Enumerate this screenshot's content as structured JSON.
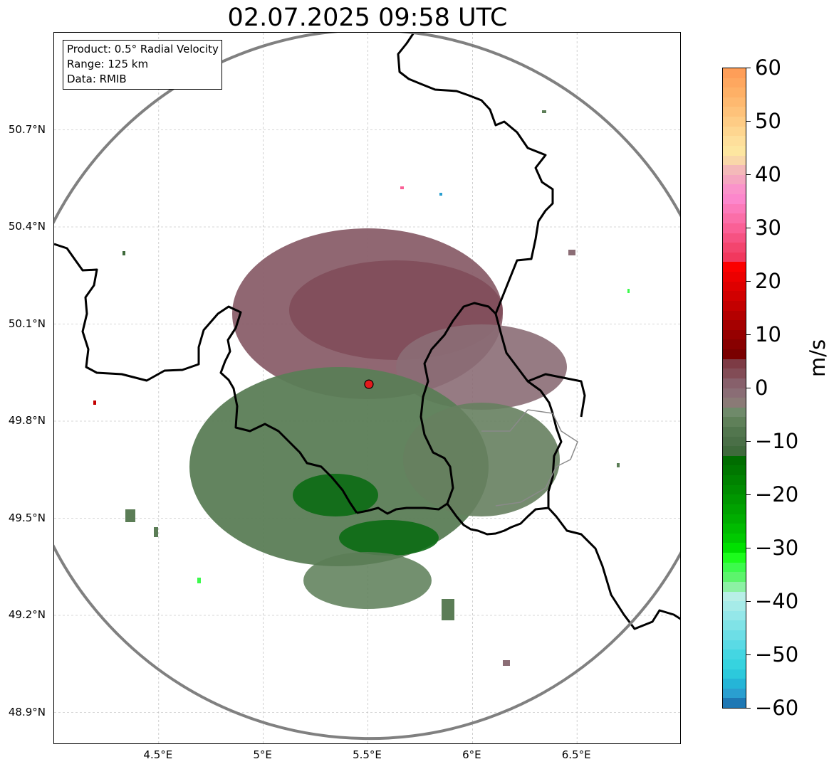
{
  "title": "02.07.2025 09:58 UTC",
  "info_box": {
    "product": "Product: 0.5° Radial Velocity",
    "range": "Range: 125 km",
    "data": "Data: RMIB"
  },
  "map": {
    "lon_range": [
      4.0,
      7.0
    ],
    "lat_range": [
      48.8,
      51.0
    ],
    "lat_ticks": [
      {
        "value": 50.7,
        "label": "50.7°N"
      },
      {
        "value": 50.4,
        "label": "50.4°N"
      },
      {
        "value": 50.1,
        "label": "50.1°N"
      },
      {
        "value": 49.8,
        "label": "49.8°N"
      },
      {
        "value": 49.5,
        "label": "49.5°N"
      },
      {
        "value": 49.2,
        "label": "49.2°N"
      },
      {
        "value": 48.9,
        "label": "48.9°N"
      }
    ],
    "lon_ticks": [
      {
        "value": 4.5,
        "label": "4.5°E"
      },
      {
        "value": 5.0,
        "label": "5°E"
      },
      {
        "value": 5.5,
        "label": "5.5°E"
      },
      {
        "value": 6.0,
        "label": "6°E"
      },
      {
        "value": 6.5,
        "label": "6.5°E"
      }
    ],
    "radar_site": {
      "lon": 5.505,
      "lat": 49.914
    },
    "grid": true,
    "range_ring_color": "#808080",
    "border_color": "#000000",
    "radar_marker_color": "#e31a1c"
  },
  "colorbar": {
    "unit": "m/s",
    "min": -60,
    "max": 60,
    "tick_labels": [
      {
        "value": 60,
        "label": "60"
      },
      {
        "value": 50,
        "label": "50"
      },
      {
        "value": 40,
        "label": "40"
      },
      {
        "value": 30,
        "label": "30"
      },
      {
        "value": 20,
        "label": "20"
      },
      {
        "value": 10,
        "label": "10"
      },
      {
        "value": 0,
        "label": "0"
      },
      {
        "value": -10,
        "label": "−10"
      },
      {
        "value": -20,
        "label": "−20"
      },
      {
        "value": -30,
        "label": "−30"
      },
      {
        "value": -40,
        "label": "−40"
      },
      {
        "value": -50,
        "label": "−50"
      },
      {
        "value": -60,
        "label": "−60"
      }
    ],
    "colors_top_to_bottom": [
      "#fe9e58",
      "#fea75f",
      "#feb066",
      "#feb970",
      "#fec27a",
      "#fecc85",
      "#fed690",
      "#fedf9b",
      "#fde6a0",
      "#f9d7a9",
      "#f4b9b9",
      "#f5a6c0",
      "#fa93ca",
      "#fc87cc",
      "#fc7aba",
      "#fb6ea8",
      "#fa6096",
      "#f65282",
      "#f3456e",
      "#f1385e",
      "#fb0000",
      "#ec0000",
      "#de0000",
      "#d10000",
      "#c30000",
      "#b40000",
      "#a50000",
      "#960000",
      "#880000",
      "#7a0000",
      "#7d3b45",
      "#824c56",
      "#87606b",
      "#8a6d75",
      "#8a7a76",
      "#6f8a6a",
      "#5f8059",
      "#52764e",
      "#4a6f47",
      "#3f6a3c",
      "#006d00",
      "#007700",
      "#008200",
      "#008c00",
      "#009700",
      "#00a200",
      "#00ad00",
      "#00bb00",
      "#00c900",
      "#00e000",
      "#1cfc1c",
      "#3cfa4c",
      "#5cf46c",
      "#8cf1a4",
      "#b8efe7",
      "#a6ebe8",
      "#94e7e9",
      "#80e3e7",
      "#6ddee6",
      "#5adae5",
      "#44d6e2",
      "#36d3df",
      "#2cc9dc",
      "#25b5d7",
      "#2a9fd0",
      "#1f78b4"
    ]
  }
}
